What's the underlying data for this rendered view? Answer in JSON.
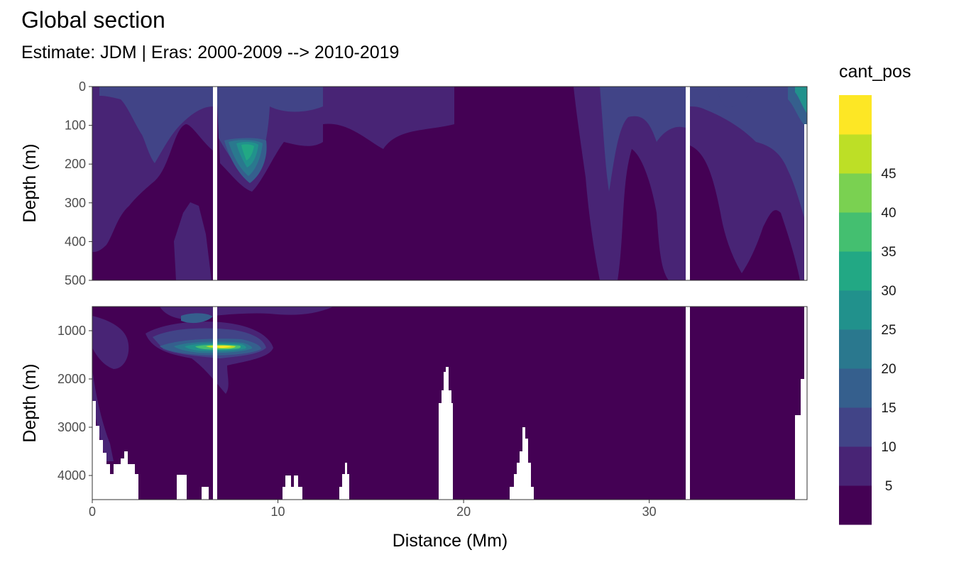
{
  "chart_data": {
    "type": "heatmap",
    "title": "Global section",
    "subtitle": "Estimate: JDM  | Eras: 2000-2009 --> 2010-2019",
    "xlabel": "Distance (Mm)",
    "ylabel": "Depth (m)",
    "xlim": [
      0,
      38.5
    ],
    "x_ticks": [
      0,
      10,
      20,
      30
    ],
    "panels": [
      {
        "name": "upper",
        "ylim": [
          0,
          500
        ],
        "y_ticks": [
          0,
          100,
          200,
          300,
          400,
          500
        ]
      },
      {
        "name": "lower",
        "ylim": [
          500,
          4500
        ],
        "y_ticks": [
          1000,
          2000,
          3000,
          4000
        ]
      }
    ],
    "data_gaps_x": [
      6.6,
      32.1
    ],
    "legend": {
      "title": "cant_pos",
      "levels": [
        5,
        10,
        15,
        20,
        25,
        30,
        35,
        40,
        45
      ],
      "colors": [
        "#440154",
        "#482475",
        "#414487",
        "#355f8d",
        "#2a788e",
        "#21918c",
        "#22a884",
        "#44bf70",
        "#7ad151",
        "#bddf26",
        "#fde725"
      ]
    },
    "features": [
      {
        "panel": "upper",
        "x": 8.5,
        "depth": 170,
        "max_value": 30
      },
      {
        "panel": "lower",
        "x": 7.5,
        "depth": 1350,
        "max_value": 45
      }
    ]
  }
}
